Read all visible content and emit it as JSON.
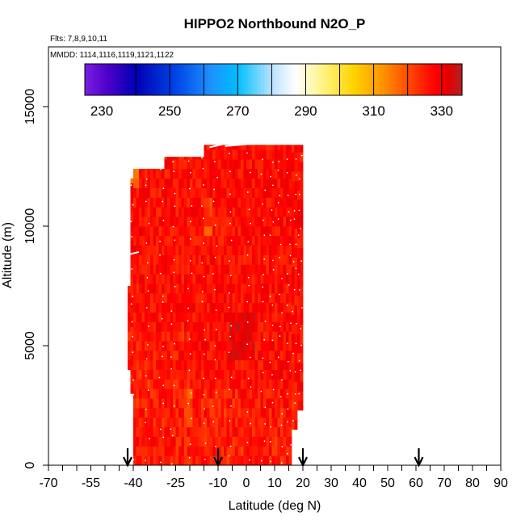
{
  "chart_data": {
    "type": "heatmap",
    "title": "HIPPO2 Northbound N2O_P",
    "flights_label": "Flts: 7,8,9,10,11",
    "mmdd_label": "MMDD: 1114,1116,1119,1121,1122",
    "xlabel": "Latitude (deg N)",
    "ylabel": "Altitude (m)",
    "xlim": [
      -70,
      90
    ],
    "ylim": [
      0,
      17500
    ],
    "x_ticks": [
      {
        "value": -70,
        "label": "-70"
      },
      {
        "value": -55,
        "label": "-55"
      },
      {
        "value": -40,
        "label": "-40"
      },
      {
        "value": -25,
        "label": "-25"
      },
      {
        "value": -10,
        "label": "-10"
      },
      {
        "value": 0,
        "label": "0"
      },
      {
        "value": 10,
        "label": "10"
      },
      {
        "value": 20,
        "label": "20"
      },
      {
        "value": 30,
        "label": "30"
      },
      {
        "value": 40,
        "label": "40"
      },
      {
        "value": 50,
        "label": "50"
      },
      {
        "value": 60,
        "label": "60"
      },
      {
        "value": 70,
        "label": "70"
      },
      {
        "value": 80,
        "label": "80"
      },
      {
        "value": 90,
        "label": "90"
      }
    ],
    "y_ticks": [
      {
        "value": 0,
        "label": "0"
      },
      {
        "value": 5000,
        "label": "5000"
      },
      {
        "value": 10000,
        "label": "10000"
      },
      {
        "value": 15000,
        "label": "15000"
      }
    ],
    "colorbar": {
      "range": [
        225,
        336
      ],
      "ticks": [
        {
          "value": 230,
          "label": "230"
        },
        {
          "value": 250,
          "label": "250"
        },
        {
          "value": 270,
          "label": "270"
        },
        {
          "value": 290,
          "label": "290"
        },
        {
          "value": 310,
          "label": "310"
        },
        {
          "value": 330,
          "label": "330"
        }
      ],
      "stops": [
        {
          "value": 225,
          "color": "#7a1fe0"
        },
        {
          "value": 232,
          "color": "#4b00c8"
        },
        {
          "value": 240,
          "color": "#0000b4"
        },
        {
          "value": 252,
          "color": "#0046e6"
        },
        {
          "value": 262,
          "color": "#1e90ff"
        },
        {
          "value": 270,
          "color": "#00bfff"
        },
        {
          "value": 280,
          "color": "#b8e2ff"
        },
        {
          "value": 287,
          "color": "#ffffff"
        },
        {
          "value": 296,
          "color": "#fff176"
        },
        {
          "value": 304,
          "color": "#ffd400"
        },
        {
          "value": 312,
          "color": "#ff9900"
        },
        {
          "value": 320,
          "color": "#ff4d00"
        },
        {
          "value": 328,
          "color": "#ff0000"
        },
        {
          "value": 332,
          "color": "#e50000"
        },
        {
          "value": 336,
          "color": "#b22222"
        }
      ]
    },
    "column_altitude_extents": [
      {
        "lat_from": -42,
        "lat_to": -41,
        "alt_min": 4000,
        "alt_max": 7500
      },
      {
        "lat_from": -41,
        "lat_to": -40,
        "alt_min": 3000,
        "alt_max": 12000
      },
      {
        "lat_from": -40,
        "lat_to": -37,
        "alt_min": 0,
        "alt_max": 12400
      },
      {
        "lat_from": -37,
        "lat_to": -29,
        "alt_min": 0,
        "alt_max": 12400
      },
      {
        "lat_from": -29,
        "lat_to": -21,
        "alt_min": 0,
        "alt_max": 12900
      },
      {
        "lat_from": -21,
        "lat_to": -15,
        "alt_min": 0,
        "alt_max": 12900
      },
      {
        "lat_from": -15,
        "lat_to": 7,
        "alt_min": 0,
        "alt_max": 13400
      },
      {
        "lat_from": 7,
        "lat_to": 16,
        "alt_min": 0,
        "alt_max": 13400
      },
      {
        "lat_from": 16,
        "lat_to": 18,
        "alt_min": 1500,
        "alt_max": 13400
      },
      {
        "lat_from": 18,
        "lat_to": 20,
        "alt_min": 2300,
        "alt_max": 13400
      }
    ],
    "values_summary": "Nearly all cells 322-333 ppb; local lows near 315-320 at low altitude and around -44 deg N near 12000 m; a slightly higher (darker red) patch near 0 deg N, 5000 m",
    "arrows_lat": [
      -42,
      -10,
      20,
      61
    ],
    "grid": false,
    "legend": "colorbar at top of plot"
  }
}
